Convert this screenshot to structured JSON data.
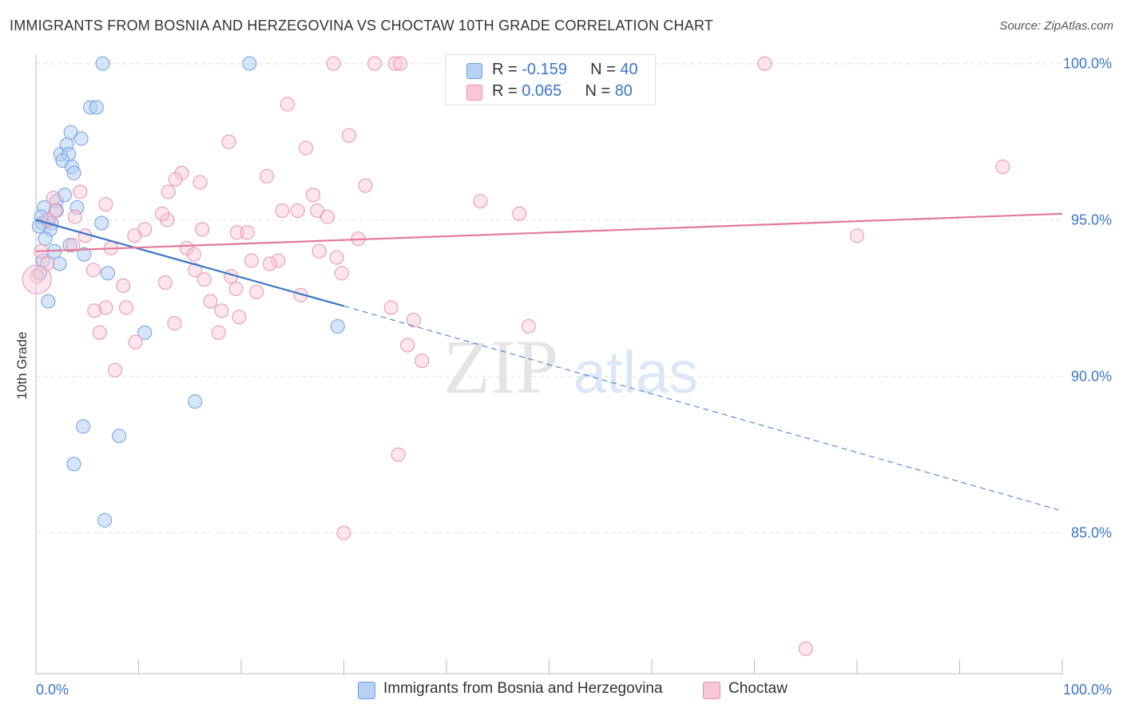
{
  "header": {
    "title": "IMMIGRANTS FROM BOSNIA AND HERZEGOVINA VS CHOCTAW 10TH GRADE CORRELATION CHART",
    "source": "Source: ZipAtlas.com"
  },
  "watermark": {
    "zip": "ZIP",
    "atlas": "atlas"
  },
  "legend": {
    "r_label": "R =",
    "n_label": "N =",
    "series": [
      {
        "name": "Immigrants from Bosnia and Herzegovina",
        "r": "-0.159",
        "n": "40",
        "fill": "#b7d0f3",
        "stroke": "#6f9fdf"
      },
      {
        "name": "Choctaw",
        "r": "0.065",
        "n": "80",
        "fill": "#f8c6d5",
        "stroke": "#e892ad"
      }
    ]
  },
  "chart_data": {
    "type": "scatter",
    "title": "IMMIGRANTS FROM BOSNIA AND HERZEGOVINA VS CHOCTAW 10TH GRADE CORRELATION CHART",
    "xlabel": "",
    "ylabel": "10th Grade",
    "xlim": [
      0,
      100
    ],
    "ylim": [
      80.5,
      100.5
    ],
    "x_tick_labels": [
      "0.0%",
      "100.0%"
    ],
    "y_ticks": [
      85,
      90,
      95,
      100
    ],
    "y_tick_labels": [
      "85.0%",
      "90.0%",
      "95.0%",
      "100.0%"
    ],
    "grid": true,
    "series": [
      {
        "name": "Immigrants from Bosnia and Herzegovina",
        "color": "#3a76c9",
        "points": [
          [
            6.5,
            100.0
          ],
          [
            20.8,
            100.0
          ],
          [
            5.3,
            98.6
          ],
          [
            5.9,
            98.6
          ],
          [
            3.4,
            97.8
          ],
          [
            4.4,
            97.6
          ],
          [
            2.4,
            97.1
          ],
          [
            3.0,
            97.4
          ],
          [
            3.2,
            97.1
          ],
          [
            2.6,
            96.9
          ],
          [
            3.5,
            96.7
          ],
          [
            3.7,
            96.5
          ],
          [
            0.8,
            95.4
          ],
          [
            2.0,
            95.6
          ],
          [
            2.8,
            95.8
          ],
          [
            4.0,
            95.4
          ],
          [
            1.2,
            95.0
          ],
          [
            0.6,
            94.9
          ],
          [
            1.5,
            94.9
          ],
          [
            6.4,
            94.9
          ],
          [
            1.4,
            94.7
          ],
          [
            0.9,
            94.4
          ],
          [
            3.3,
            94.2
          ],
          [
            1.8,
            94.0
          ],
          [
            4.7,
            93.9
          ],
          [
            0.7,
            93.7
          ],
          [
            2.3,
            93.6
          ],
          [
            7.0,
            93.3
          ],
          [
            0.4,
            93.3
          ],
          [
            1.2,
            92.4
          ],
          [
            10.6,
            91.4
          ],
          [
            29.4,
            91.6
          ],
          [
            15.5,
            89.2
          ],
          [
            4.6,
            88.4
          ],
          [
            8.1,
            88.1
          ],
          [
            3.7,
            87.2
          ],
          [
            6.7,
            85.4
          ],
          [
            0.5,
            95.1
          ],
          [
            2.0,
            95.3
          ],
          [
            0.3,
            94.8
          ]
        ],
        "trend": {
          "x0": 0,
          "y0": 95.0,
          "x1": 30,
          "y1": 92.25,
          "dashed_to_x": 100,
          "dashed_to_y": 85.7
        }
      },
      {
        "name": "Choctaw",
        "color": "#e3799b",
        "points": [
          [
            29.0,
            100.0
          ],
          [
            33.0,
            100.0
          ],
          [
            35.0,
            100.0
          ],
          [
            35.5,
            100.0
          ],
          [
            71.0,
            100.0
          ],
          [
            24.5,
            98.7
          ],
          [
            18.8,
            97.5
          ],
          [
            26.3,
            97.3
          ],
          [
            30.5,
            97.7
          ],
          [
            94.2,
            96.7
          ],
          [
            22.5,
            96.4
          ],
          [
            14.2,
            96.5
          ],
          [
            13.6,
            96.3
          ],
          [
            12.9,
            95.9
          ],
          [
            32.1,
            96.1
          ],
          [
            16.0,
            96.2
          ],
          [
            27.0,
            95.8
          ],
          [
            1.7,
            95.7
          ],
          [
            4.3,
            95.9
          ],
          [
            6.8,
            95.5
          ],
          [
            43.3,
            95.6
          ],
          [
            24.0,
            95.3
          ],
          [
            25.5,
            95.3
          ],
          [
            27.4,
            95.3
          ],
          [
            28.4,
            95.1
          ],
          [
            1.9,
            95.3
          ],
          [
            3.8,
            95.1
          ],
          [
            12.8,
            95.0
          ],
          [
            47.1,
            95.2
          ],
          [
            80.0,
            94.5
          ],
          [
            10.6,
            94.7
          ],
          [
            16.2,
            94.7
          ],
          [
            19.6,
            94.6
          ],
          [
            20.6,
            94.6
          ],
          [
            4.8,
            94.5
          ],
          [
            9.6,
            94.5
          ],
          [
            31.4,
            94.4
          ],
          [
            3.6,
            94.2
          ],
          [
            7.3,
            94.1
          ],
          [
            14.7,
            94.1
          ],
          [
            27.6,
            94.0
          ],
          [
            0.5,
            94.0
          ],
          [
            15.4,
            93.9
          ],
          [
            23.6,
            93.7
          ],
          [
            29.3,
            93.8
          ],
          [
            21.0,
            93.7
          ],
          [
            22.8,
            93.6
          ],
          [
            1.1,
            93.6
          ],
          [
            5.6,
            93.4
          ],
          [
            16.4,
            93.1
          ],
          [
            19.0,
            93.2
          ],
          [
            29.8,
            93.3
          ],
          [
            8.5,
            92.9
          ],
          [
            12.6,
            93.0
          ],
          [
            19.5,
            92.8
          ],
          [
            21.5,
            92.7
          ],
          [
            25.8,
            92.6
          ],
          [
            6.8,
            92.2
          ],
          [
            8.8,
            92.2
          ],
          [
            17.0,
            92.4
          ],
          [
            18.1,
            92.1
          ],
          [
            5.7,
            92.1
          ],
          [
            34.6,
            92.2
          ],
          [
            19.8,
            91.9
          ],
          [
            36.8,
            91.8
          ],
          [
            13.5,
            91.7
          ],
          [
            6.2,
            91.4
          ],
          [
            17.8,
            91.4
          ],
          [
            9.7,
            91.1
          ],
          [
            36.2,
            91.0
          ],
          [
            37.6,
            90.5
          ],
          [
            7.7,
            90.2
          ],
          [
            35.3,
            87.5
          ],
          [
            30.0,
            85.0
          ],
          [
            75.0,
            81.3
          ],
          [
            0.1,
            93.2
          ],
          [
            15.5,
            93.4
          ],
          [
            12.3,
            95.2
          ],
          [
            48.0,
            91.6
          ],
          [
            1.2,
            95.0
          ]
        ],
        "trend": {
          "x0": 0,
          "y0": 94.0,
          "x1": 100,
          "y1": 95.2
        }
      }
    ]
  }
}
